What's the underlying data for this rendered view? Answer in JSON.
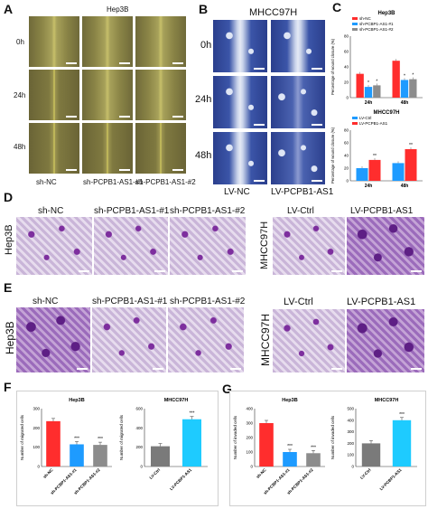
{
  "panels": {
    "A": {
      "label": "A",
      "cell_line": "Hep3B",
      "times": [
        "0h",
        "24h",
        "48h"
      ],
      "groups": [
        "sh-NC",
        "sh-PCPB1-AS1-#1",
        "sh-PCPB1-AS1-#2"
      ]
    },
    "B": {
      "label": "B",
      "cell_line": "MHCC97H",
      "times": [
        "0h",
        "24h",
        "48h"
      ],
      "groups": [
        "LV-NC",
        "LV-PCPB1-AS1"
      ]
    },
    "C": {
      "label": "C"
    },
    "D": {
      "label": "D",
      "left_cell_line": "Hep3B",
      "left_groups": [
        "sh-NC",
        "sh-PCPB1-AS1-#1",
        "sh-PCPB1-AS1-#2"
      ],
      "right_cell_line": "MHCC97H",
      "right_groups": [
        "LV-Ctrl",
        "LV-PCPB1-AS1"
      ]
    },
    "E": {
      "label": "E",
      "left_cell_line": "Hep3B",
      "left_groups": [
        "sh-NC",
        "sh-PCPB1-AS1-#1",
        "sh-PCPB1-AS1-#2"
      ],
      "right_cell_line": "MHCC97H",
      "right_groups": [
        "LV-Ctrl",
        "LV-PCPB1-AS1"
      ]
    },
    "F": {
      "label": "F"
    },
    "G": {
      "label": "G"
    }
  },
  "colors": {
    "red": "#ff2d2d",
    "blue": "#1e9bff",
    "gray": "#8c8c8c",
    "bar_dark": "#7a7a7a",
    "text_dark": "#111111"
  },
  "chart_data": [
    {
      "id": "C-top",
      "type": "bar",
      "title": "Hep3B",
      "categories": [
        "24h",
        "48h"
      ],
      "series": [
        {
          "name": "sh-NC",
          "values": [
            31,
            48
          ],
          "color": "#ff2d2d"
        },
        {
          "name": "sh-PCBP1-AS1-#1",
          "values": [
            14,
            23
          ],
          "color": "#1e9bff"
        },
        {
          "name": "sh-PCBP1-AS1-#2",
          "values": [
            16,
            24
          ],
          "color": "#8c8c8c"
        }
      ],
      "ylabel": "Percentage of wound closure (%)",
      "ylim": [
        0,
        80
      ],
      "yticks": [
        "0",
        "20",
        "40",
        "60",
        "80"
      ],
      "significance": [
        "*",
        "*",
        "*",
        "*"
      ],
      "legend_position": "top-left"
    },
    {
      "id": "C-bottom",
      "type": "bar",
      "title": "MHCC97H",
      "categories": [
        "24h",
        "48h"
      ],
      "series": [
        {
          "name": "LV-Ctrl",
          "values": [
            20,
            28
          ],
          "color": "#1e9bff"
        },
        {
          "name": "LV-PCPB1-AS1",
          "values": [
            33,
            50
          ],
          "color": "#ff2d2d"
        }
      ],
      "ylabel": "Percentage of wound closure (%)",
      "ylim": [
        0,
        80
      ],
      "yticks": [
        "0",
        "20",
        "40",
        "60",
        "80"
      ],
      "significance": [
        "**",
        "**"
      ],
      "legend_position": "top-left"
    },
    {
      "id": "F-left",
      "type": "bar",
      "title": "Hep3B",
      "categories": [
        "sh-NC",
        "sh-PCBP1-AS1-#1",
        "sh-PCBP1-AS1-#2"
      ],
      "values": [
        235,
        115,
        112
      ],
      "bar_colors": [
        "#ff2d2d",
        "#1e9bff",
        "#8c8c8c"
      ],
      "ylabel": "Number of migrated cells",
      "ylim": [
        0,
        300
      ],
      "yticks": [
        "0",
        "100",
        "200",
        "300"
      ],
      "significance": [
        "",
        "***",
        "***"
      ]
    },
    {
      "id": "F-right",
      "type": "bar",
      "title": "MHCC97H",
      "categories": [
        "LV-Ctrl",
        "LV-PCBP1-AS1"
      ],
      "values": [
        210,
        490
      ],
      "bar_colors": [
        "#7a7a7a",
        "#1ecbff"
      ],
      "ylabel": "Number of migrated cells",
      "ylim": [
        0,
        600
      ],
      "yticks": [
        "0",
        "200",
        "400",
        "600"
      ],
      "significance": [
        "",
        "***"
      ]
    },
    {
      "id": "G-left",
      "type": "bar",
      "title": "Hep3B",
      "categories": [
        "sh-NC",
        "sh-PCBP1-AS1-#1",
        "sh-PCBP1-AS1-#2"
      ],
      "values": [
        300,
        100,
        92
      ],
      "bar_colors": [
        "#ff2d2d",
        "#1e9bff",
        "#8c8c8c"
      ],
      "ylabel": "Number of invaded cells",
      "ylim": [
        0,
        400
      ],
      "yticks": [
        "0",
        "100",
        "200",
        "300",
        "400"
      ],
      "significance": [
        "",
        "***",
        "***"
      ]
    },
    {
      "id": "G-right",
      "type": "bar",
      "title": "MHCC97H",
      "categories": [
        "LV-Ctrl",
        "LV-PCBP1-AS1"
      ],
      "values": [
        200,
        400
      ],
      "bar_colors": [
        "#7a7a7a",
        "#1ecbff"
      ],
      "ylabel": "Number of invaded cells",
      "ylim": [
        0,
        500
      ],
      "yticks": [
        "0",
        "100",
        "200",
        "300",
        "400",
        "500"
      ],
      "significance": [
        "",
        "***"
      ]
    }
  ]
}
